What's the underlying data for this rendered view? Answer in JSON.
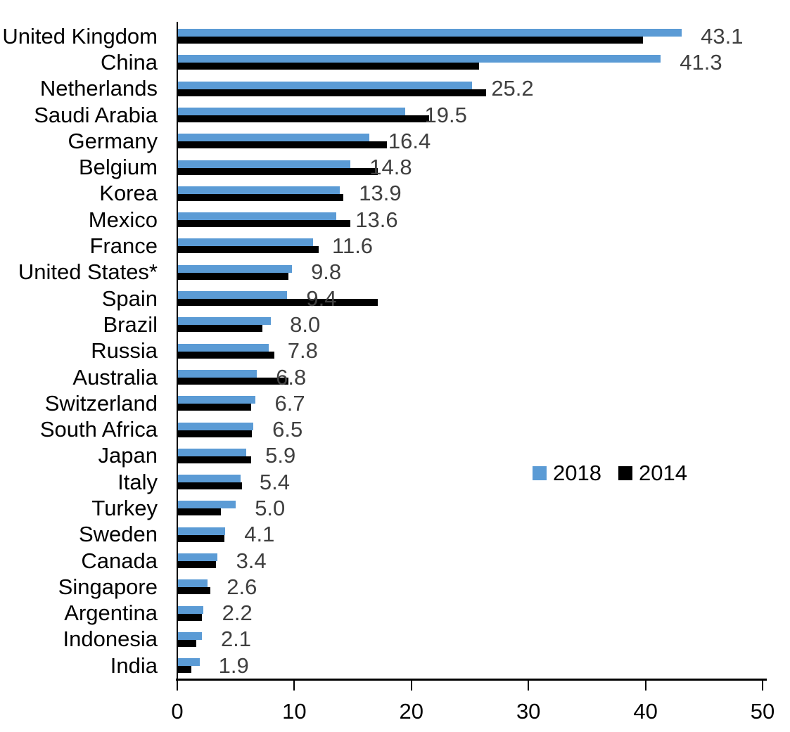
{
  "chart_data": {
    "type": "bar",
    "orientation": "horizontal",
    "title": "",
    "xlabel": "",
    "ylabel": "",
    "categories": [
      "United Kingdom",
      "China",
      "Netherlands",
      "Saudi Arabia",
      "Germany",
      "Belgium",
      "Korea",
      "Mexico",
      "France",
      "United States*",
      "Spain",
      "Brazil",
      "Russia",
      "Australia",
      "Switzerland",
      "South Africa",
      "Japan",
      "Italy",
      "Turkey",
      "Sweden",
      "Canada",
      "Singapore",
      "Argentina",
      "Indonesia",
      "India"
    ],
    "series": [
      {
        "name": "2018",
        "color": "#5B9BD5",
        "values": [
          43.1,
          41.3,
          25.2,
          19.5,
          16.4,
          14.8,
          13.9,
          13.6,
          11.6,
          9.8,
          9.4,
          8.0,
          7.8,
          6.8,
          6.7,
          6.5,
          5.9,
          5.4,
          5.0,
          4.1,
          3.4,
          2.6,
          2.2,
          2.1,
          1.9
        ]
      },
      {
        "name": "2014",
        "color": "#000000",
        "values": [
          39.8,
          25.8,
          26.4,
          21.5,
          17.9,
          17.1,
          14.2,
          14.8,
          12.1,
          9.5,
          17.1,
          7.3,
          8.3,
          9.5,
          6.3,
          6.4,
          6.3,
          5.5,
          3.7,
          4.0,
          3.3,
          2.8,
          2.1,
          1.6,
          1.2
        ]
      }
    ],
    "data_labels": [
      "43.1",
      "41.3",
      "25.2",
      "19.5",
      "16.4",
      "14.8",
      "13.9",
      "13.6",
      "11.6",
      "9.8",
      "9.4",
      "8.0",
      "7.8",
      "6.8",
      "6.7",
      "6.5",
      "5.9",
      "5.4",
      "5.0",
      "4.1",
      "3.4",
      "2.6",
      "2.2",
      "2.1",
      "1.9"
    ],
    "data_labels_series": "2018",
    "data_label_color": "#404040",
    "xlim": [
      0,
      50
    ],
    "x_ticks": [
      "0",
      "10",
      "20",
      "30",
      "40",
      "50"
    ],
    "grid": false,
    "legend": {
      "position": "middle-right",
      "entries": [
        {
          "label": "2018",
          "color": "#5B9BD5"
        },
        {
          "label": "2014",
          "color": "#000000"
        }
      ]
    }
  },
  "colors": {
    "background": "#FFFFFF",
    "axis": "#000000",
    "category_text": "#000000",
    "tick_text": "#000000"
  }
}
